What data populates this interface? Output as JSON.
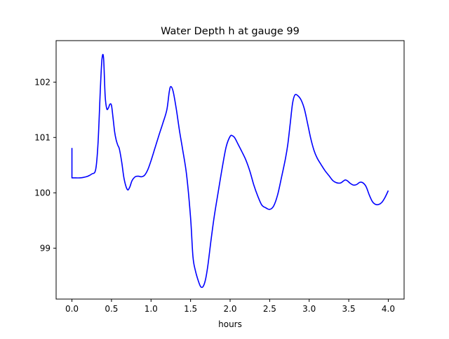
{
  "chart_data": {
    "type": "line",
    "title": "Water Depth h at gauge 99",
    "xlabel": "hours",
    "ylabel": "",
    "xlim": [
      -0.2,
      4.2
    ],
    "ylim": [
      98.08,
      102.75
    ],
    "xticks": [
      0.0,
      0.5,
      1.0,
      1.5,
      2.0,
      2.5,
      3.0,
      3.5,
      4.0
    ],
    "xtick_labels": [
      "0.0",
      "0.5",
      "1.0",
      "1.5",
      "2.0",
      "2.5",
      "3.0",
      "3.5",
      "4.0"
    ],
    "yticks": [
      99,
      100,
      101,
      102
    ],
    "ytick_labels": [
      "99",
      "100",
      "101",
      "102"
    ],
    "grid": false,
    "legend": false,
    "series": [
      {
        "color": "#0000ff",
        "x": [
          0.0,
          0.0,
          0.05,
          0.1,
          0.15,
          0.2,
          0.25,
          0.3,
          0.33,
          0.36,
          0.38,
          0.4,
          0.42,
          0.44,
          0.46,
          0.48,
          0.5,
          0.52,
          0.54,
          0.56,
          0.58,
          0.6,
          0.63,
          0.66,
          0.7,
          0.73,
          0.76,
          0.8,
          0.84,
          0.88,
          0.92,
          0.96,
          1.0,
          1.05,
          1.1,
          1.15,
          1.2,
          1.23,
          1.25,
          1.28,
          1.32,
          1.36,
          1.4,
          1.45,
          1.5,
          1.53,
          1.56,
          1.6,
          1.63,
          1.66,
          1.69,
          1.72,
          1.76,
          1.8,
          1.85,
          1.9,
          1.95,
          2.0,
          2.03,
          2.06,
          2.1,
          2.15,
          2.2,
          2.25,
          2.3,
          2.35,
          2.4,
          2.45,
          2.5,
          2.55,
          2.6,
          2.65,
          2.7,
          2.73,
          2.76,
          2.79,
          2.82,
          2.86,
          2.9,
          2.94,
          2.98,
          3.02,
          3.06,
          3.1,
          3.15,
          3.2,
          3.25,
          3.3,
          3.35,
          3.4,
          3.45,
          3.48,
          3.52,
          3.56,
          3.6,
          3.64,
          3.68,
          3.72,
          3.76,
          3.8,
          3.84,
          3.88,
          3.92,
          3.96,
          4.0
        ],
        "y": [
          100.81,
          100.27,
          100.27,
          100.27,
          100.28,
          100.3,
          100.34,
          100.42,
          100.9,
          101.9,
          102.42,
          102.43,
          101.75,
          101.52,
          101.53,
          101.6,
          101.58,
          101.35,
          101.1,
          100.95,
          100.86,
          100.79,
          100.55,
          100.25,
          100.06,
          100.1,
          100.22,
          100.29,
          100.3,
          100.29,
          100.32,
          100.42,
          100.58,
          100.81,
          101.04,
          101.26,
          101.5,
          101.82,
          101.92,
          101.83,
          101.51,
          101.12,
          100.78,
          100.32,
          99.55,
          98.85,
          98.6,
          98.4,
          98.3,
          98.31,
          98.44,
          98.7,
          99.16,
          99.58,
          100.02,
          100.45,
          100.83,
          101.02,
          101.03,
          100.99,
          100.88,
          100.74,
          100.59,
          100.39,
          100.14,
          99.94,
          99.78,
          99.73,
          99.7,
          99.76,
          99.96,
          100.28,
          100.62,
          100.88,
          101.25,
          101.62,
          101.77,
          101.75,
          101.67,
          101.51,
          101.25,
          100.98,
          100.77,
          100.63,
          100.51,
          100.4,
          100.31,
          100.22,
          100.18,
          100.18,
          100.23,
          100.22,
          100.17,
          100.14,
          100.15,
          100.19,
          100.18,
          100.11,
          99.96,
          99.84,
          99.79,
          99.79,
          99.83,
          99.92,
          100.04
        ]
      }
    ]
  }
}
